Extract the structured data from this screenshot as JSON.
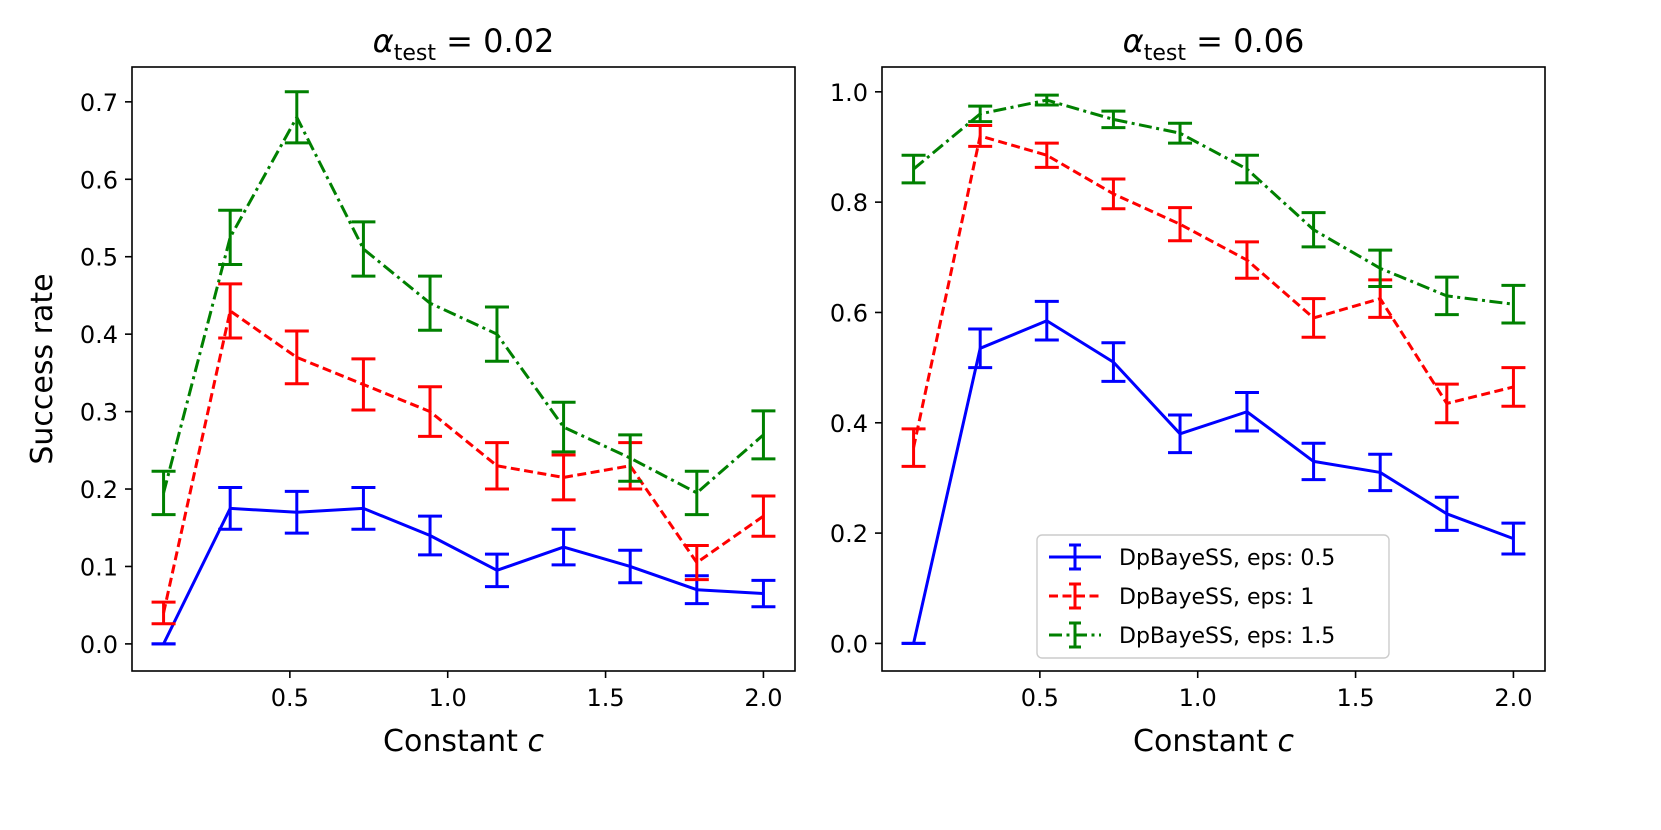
{
  "chart_data": [
    {
      "type": "line",
      "title_symbol": "α",
      "title_subscript": "test",
      "title_rest": " = 0.02",
      "xlabel_prefix": "Constant ",
      "xlabel_var": "c",
      "ylabel": "Success rate",
      "xlim": [
        0.0,
        2.1
      ],
      "ylim": [
        -0.035,
        0.745
      ],
      "xticks": [
        0.5,
        1.0,
        1.5,
        2.0
      ],
      "xtick_labels": [
        "0.5",
        "1.0",
        "1.5",
        "2.0"
      ],
      "yticks": [
        0.0,
        0.1,
        0.2,
        0.3,
        0.4,
        0.5,
        0.6,
        0.7
      ],
      "ytick_labels": [
        "0.0",
        "0.1",
        "0.2",
        "0.3",
        "0.4",
        "0.5",
        "0.6",
        "0.7"
      ],
      "x": [
        0.1,
        0.311,
        0.522,
        0.733,
        0.944,
        1.156,
        1.367,
        1.578,
        1.789,
        2.0
      ],
      "series": [
        {
          "name": "DpBayeSS, eps: 0.5",
          "color": "#0000ff",
          "dash": "solid",
          "values": [
            0.0,
            0.175,
            0.17,
            0.175,
            0.14,
            0.095,
            0.125,
            0.1,
            0.07,
            0.065
          ],
          "errors": [
            0.0,
            0.027,
            0.027,
            0.027,
            0.025,
            0.021,
            0.023,
            0.021,
            0.018,
            0.017
          ]
        },
        {
          "name": "DpBayeSS, eps: 1",
          "color": "#ff0000",
          "dash": "dashed",
          "values": [
            0.04,
            0.43,
            0.37,
            0.335,
            0.3,
            0.23,
            0.215,
            0.23,
            0.105,
            0.165
          ],
          "errors": [
            0.014,
            0.035,
            0.034,
            0.033,
            0.032,
            0.03,
            0.029,
            0.03,
            0.022,
            0.026
          ]
        },
        {
          "name": "DpBayeSS, eps: 1.5",
          "color": "#008000",
          "dash": "dashdot",
          "values": [
            0.195,
            0.525,
            0.68,
            0.51,
            0.44,
            0.4,
            0.28,
            0.24,
            0.195,
            0.27
          ],
          "errors": [
            0.028,
            0.035,
            0.033,
            0.035,
            0.035,
            0.035,
            0.032,
            0.03,
            0.028,
            0.031
          ]
        }
      ]
    },
    {
      "type": "line",
      "title_symbol": "α",
      "title_subscript": "test",
      "title_rest": " = 0.06",
      "xlabel_prefix": "Constant ",
      "xlabel_var": "c",
      "ylabel": "",
      "xlim": [
        0.0,
        2.1
      ],
      "ylim": [
        -0.05,
        1.045
      ],
      "xticks": [
        0.5,
        1.0,
        1.5,
        2.0
      ],
      "xtick_labels": [
        "0.5",
        "1.0",
        "1.5",
        "2.0"
      ],
      "yticks": [
        0.0,
        0.2,
        0.4,
        0.6,
        0.8,
        1.0
      ],
      "ytick_labels": [
        "0.0",
        "0.2",
        "0.4",
        "0.6",
        "0.8",
        "1.0"
      ],
      "x": [
        0.1,
        0.311,
        0.522,
        0.733,
        0.944,
        1.156,
        1.367,
        1.578,
        1.789,
        2.0
      ],
      "legend_location": "lower-right",
      "series": [
        {
          "name": "DpBayeSS, eps: 0.5",
          "color": "#0000ff",
          "dash": "solid",
          "values": [
            0.0,
            0.535,
            0.585,
            0.51,
            0.38,
            0.42,
            0.33,
            0.31,
            0.235,
            0.19
          ],
          "errors": [
            0.0,
            0.035,
            0.035,
            0.035,
            0.034,
            0.035,
            0.033,
            0.033,
            0.03,
            0.028
          ]
        },
        {
          "name": "DpBayeSS, eps: 1",
          "color": "#ff0000",
          "dash": "dashed",
          "values": [
            0.355,
            0.92,
            0.885,
            0.815,
            0.76,
            0.695,
            0.59,
            0.625,
            0.435,
            0.465
          ],
          "errors": [
            0.034,
            0.019,
            0.022,
            0.027,
            0.03,
            0.033,
            0.035,
            0.034,
            0.035,
            0.035
          ]
        },
        {
          "name": "DpBayeSS, eps: 1.5",
          "color": "#008000",
          "dash": "dashdot",
          "values": [
            0.86,
            0.96,
            0.985,
            0.95,
            0.925,
            0.86,
            0.75,
            0.68,
            0.63,
            0.615
          ],
          "errors": [
            0.025,
            0.014,
            0.009,
            0.015,
            0.018,
            0.025,
            0.031,
            0.033,
            0.034,
            0.034
          ]
        }
      ]
    }
  ]
}
